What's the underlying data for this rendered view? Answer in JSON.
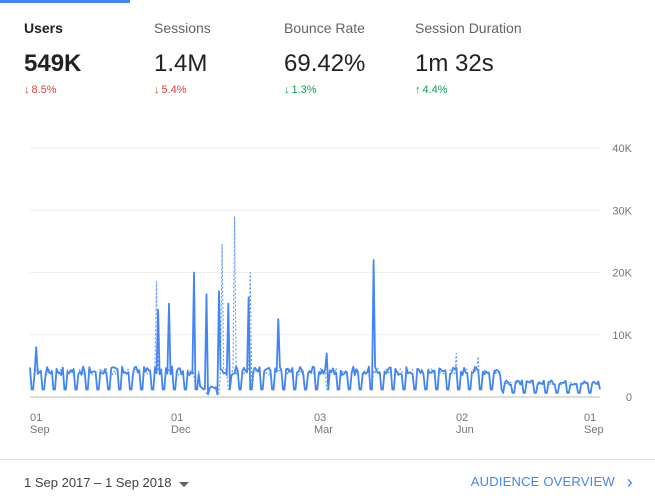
{
  "metrics": [
    {
      "label": "Users",
      "value": "549K",
      "delta": "8.5%",
      "direction": "down",
      "active": true
    },
    {
      "label": "Sessions",
      "value": "1.4M",
      "delta": "5.4%",
      "direction": "down",
      "active": false
    },
    {
      "label": "Bounce Rate",
      "value": "69.42%",
      "delta": "1.3%",
      "direction": "down",
      "active": false
    },
    {
      "label": "Session Duration",
      "value": "1m 32s",
      "delta": "4.4%",
      "direction": "up",
      "active": false
    }
  ],
  "colors": {
    "accent": "#4285f4",
    "negative": "#db4437",
    "positive": "#0f9d58"
  },
  "footer": {
    "date_range": "1 Sep 2017 – 1 Sep 2018",
    "link_label": "AUDIENCE OVERVIEW"
  },
  "chart_data": {
    "type": "line",
    "x_ticks": [
      {
        "day": "01",
        "month": "Sep"
      },
      {
        "day": "01",
        "month": "Dec"
      },
      {
        "day": "03",
        "month": "Mar"
      },
      {
        "day": "02",
        "month": "Jun"
      },
      {
        "day": "01",
        "month": "Sep"
      }
    ],
    "y_ticks": [
      "0",
      "10K",
      "20K",
      "30K",
      "40K"
    ],
    "ylim": [
      0,
      40000
    ],
    "x": {
      "start": "2017-09-01",
      "end": "2018-09-01"
    },
    "grid": true,
    "series": [
      {
        "style": "solid",
        "spikes": [
          {
            "date": "2017-09-05",
            "value": 8000
          },
          {
            "date": "2017-11-22",
            "value": 14000
          },
          {
            "date": "2017-11-29",
            "value": 15000
          },
          {
            "date": "2017-12-15",
            "value": 20000
          },
          {
            "date": "2017-12-23",
            "value": 16500
          },
          {
            "date": "2017-12-31",
            "value": 17000
          },
          {
            "date": "2018-01-06",
            "value": 15000
          },
          {
            "date": "2018-01-19",
            "value": 16000
          },
          {
            "date": "2018-02-07",
            "value": 12500
          },
          {
            "date": "2018-03-10",
            "value": 7000
          },
          {
            "date": "2018-04-09",
            "value": 22000
          }
        ]
      },
      {
        "style": "dashed",
        "spikes": [
          {
            "date": "2017-11-21",
            "value": 18500
          },
          {
            "date": "2018-01-02",
            "value": 24500
          },
          {
            "date": "2018-01-10",
            "value": 29000
          },
          {
            "date": "2018-01-20",
            "value": 20000
          },
          {
            "date": "2018-06-01",
            "value": 7000
          },
          {
            "date": "2018-06-15",
            "value": 6500
          }
        ]
      }
    ]
  }
}
